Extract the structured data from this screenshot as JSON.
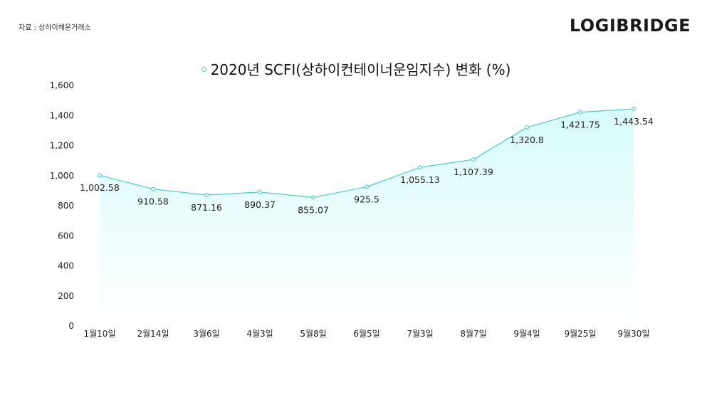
{
  "source": "자료 : 상하이해운거래소",
  "brand": "LOGIBRIDGE",
  "accent_color": "#4ecdc4",
  "area_color": "#d7fbfb",
  "chart_data": {
    "type": "area",
    "title": "2020년 SCFI(상하이컨테이너운임지수) 변화 (%)",
    "categories": [
      "1월10일",
      "2월14일",
      "3월6일",
      "4월3일",
      "5월8일",
      "6월5일",
      "7월3일",
      "8월7일",
      "9월4일",
      "9월25일",
      "9월30일"
    ],
    "series": [
      {
        "values": [
          1002.58,
          910.58,
          871.16,
          890.37,
          855.07,
          925.5,
          1055.13,
          1107.39,
          1320.8,
          1421.75,
          1443.54
        ]
      }
    ],
    "data_labels": [
      "1,002.58",
      "910.58",
      "871.16",
      "890.37",
      "855.07",
      "925.5",
      "1,055.13",
      "1,107.39",
      "1,320.8",
      "1,421.75",
      "1,443.54"
    ],
    "y_ticks": [
      "0",
      "200",
      "400",
      "600",
      "800",
      "1,000",
      "1,200",
      "1,400",
      "1,600"
    ],
    "ylim": [
      0,
      1600
    ],
    "grid": false,
    "legend": "none"
  }
}
